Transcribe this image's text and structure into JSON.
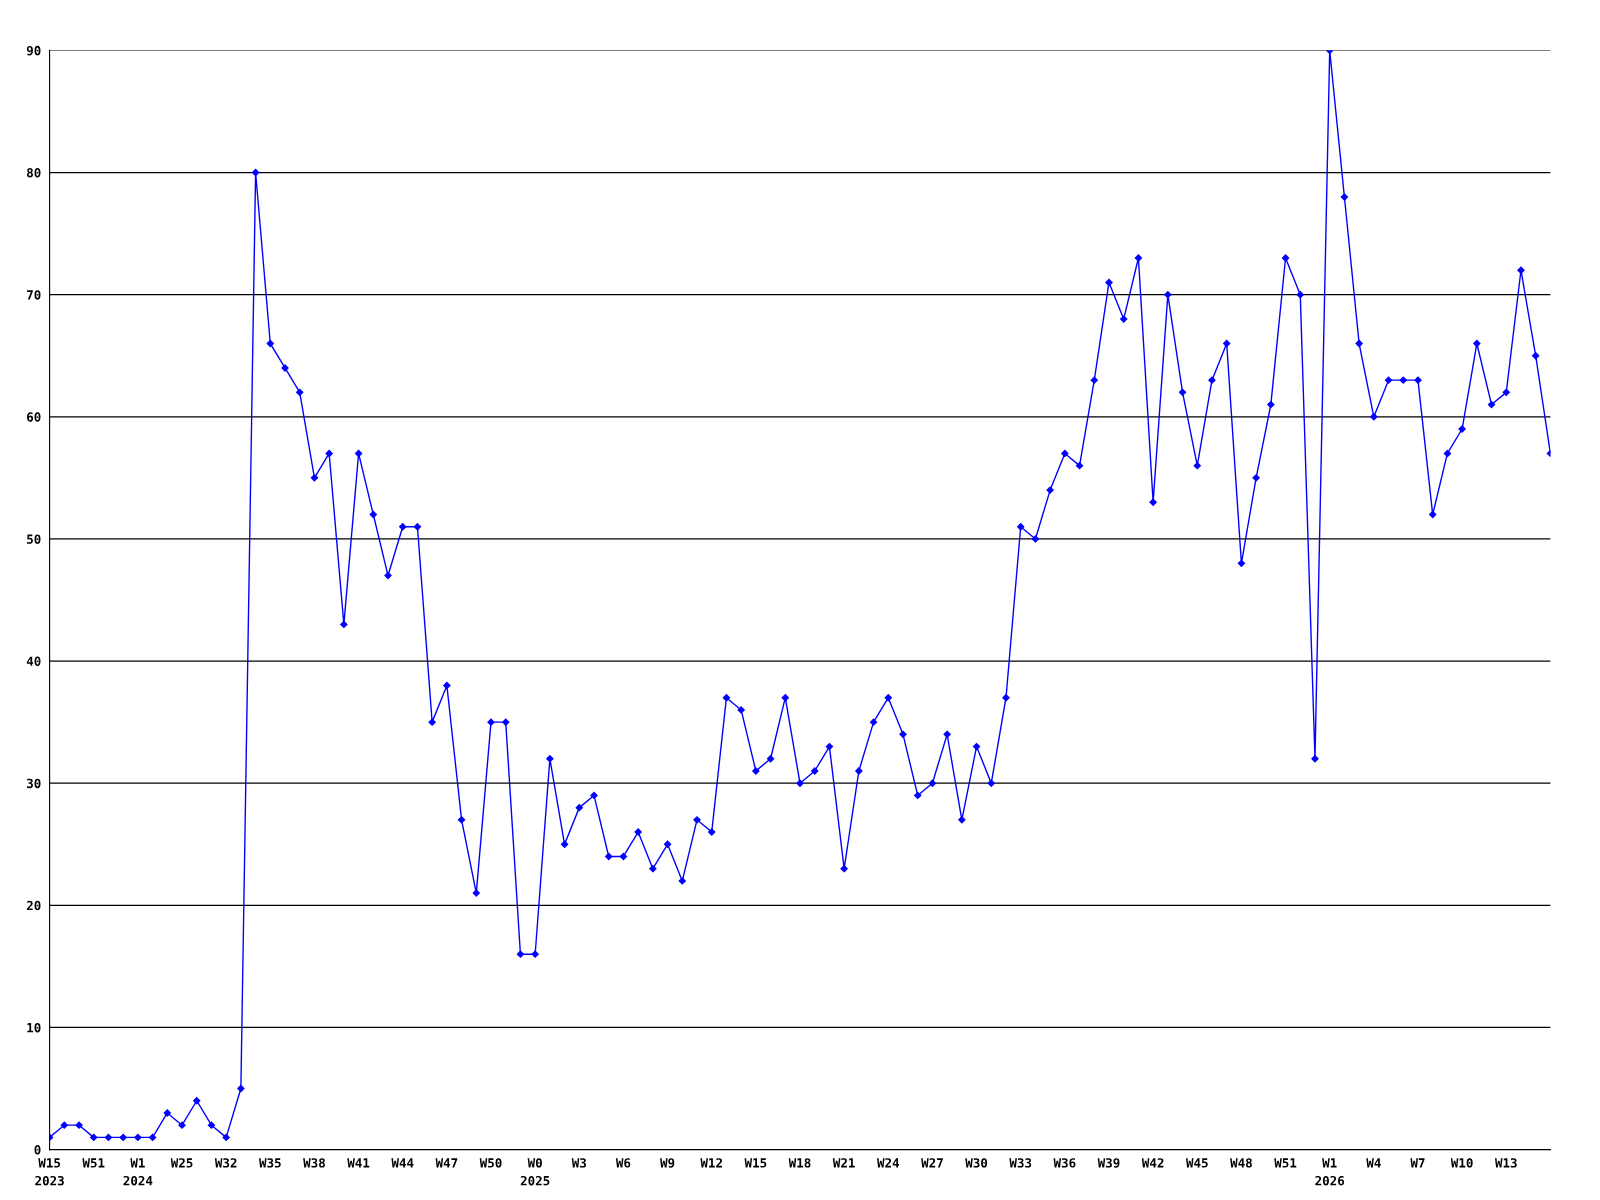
{
  "chart_data": {
    "type": "line",
    "categories": [
      "W15\n2023",
      null,
      null,
      "W51",
      null,
      null,
      "W1\n2024",
      null,
      null,
      "W25",
      null,
      null,
      "W32",
      null,
      null,
      "W35",
      null,
      null,
      "W38",
      null,
      null,
      "W41",
      null,
      null,
      "W44",
      null,
      null,
      "W47",
      null,
      null,
      "W50",
      null,
      null,
      "W0\n2025",
      null,
      null,
      "W3",
      null,
      null,
      "W6",
      null,
      null,
      "W9",
      null,
      null,
      "W12",
      null,
      null,
      "W15",
      null,
      null,
      "W18",
      null,
      null,
      "W21",
      null,
      null,
      "W24",
      null,
      null,
      "W27",
      null,
      null,
      "W30",
      null,
      null,
      "W33",
      null,
      null,
      "W36",
      null,
      null,
      "W39",
      null,
      null,
      "W42",
      null,
      null,
      "W45",
      null,
      null,
      "W48",
      null,
      null,
      "W51",
      null,
      null,
      "W1\n2026",
      null,
      null,
      "W4",
      null,
      null,
      "W7",
      null,
      null,
      "W10",
      null,
      null,
      "W13",
      null,
      null,
      null
    ],
    "series": [
      {
        "color": "#0000ff",
        "values": [
          1,
          2,
          2,
          1,
          1,
          1,
          1,
          1,
          3,
          2,
          4,
          2,
          1,
          5,
          80,
          66,
          64,
          62,
          55,
          57,
          43,
          57,
          52,
          47,
          51,
          51,
          35,
          38,
          27,
          21,
          35,
          35,
          16,
          16,
          32,
          25,
          28,
          29,
          24,
          24,
          26,
          23,
          25,
          22,
          27,
          26,
          37,
          36,
          31,
          32,
          37,
          30,
          31,
          33,
          23,
          31,
          35,
          37,
          34,
          29,
          30,
          34,
          27,
          33,
          30,
          37,
          51,
          50,
          54,
          57,
          56,
          63,
          71,
          68,
          73,
          53,
          70,
          62,
          56,
          63,
          66,
          48,
          55,
          61,
          73,
          70,
          32,
          90,
          78,
          66,
          60,
          63,
          63,
          63,
          52,
          57,
          59,
          66,
          61,
          62,
          72,
          65,
          57
        ]
      }
    ],
    "ylim": [
      0,
      90
    ],
    "yticks": [
      0,
      10,
      20,
      30,
      40,
      50,
      60,
      70,
      80,
      90
    ],
    "grid": "y",
    "marker": "diamond",
    "line_style": "solid",
    "legend": false
  }
}
